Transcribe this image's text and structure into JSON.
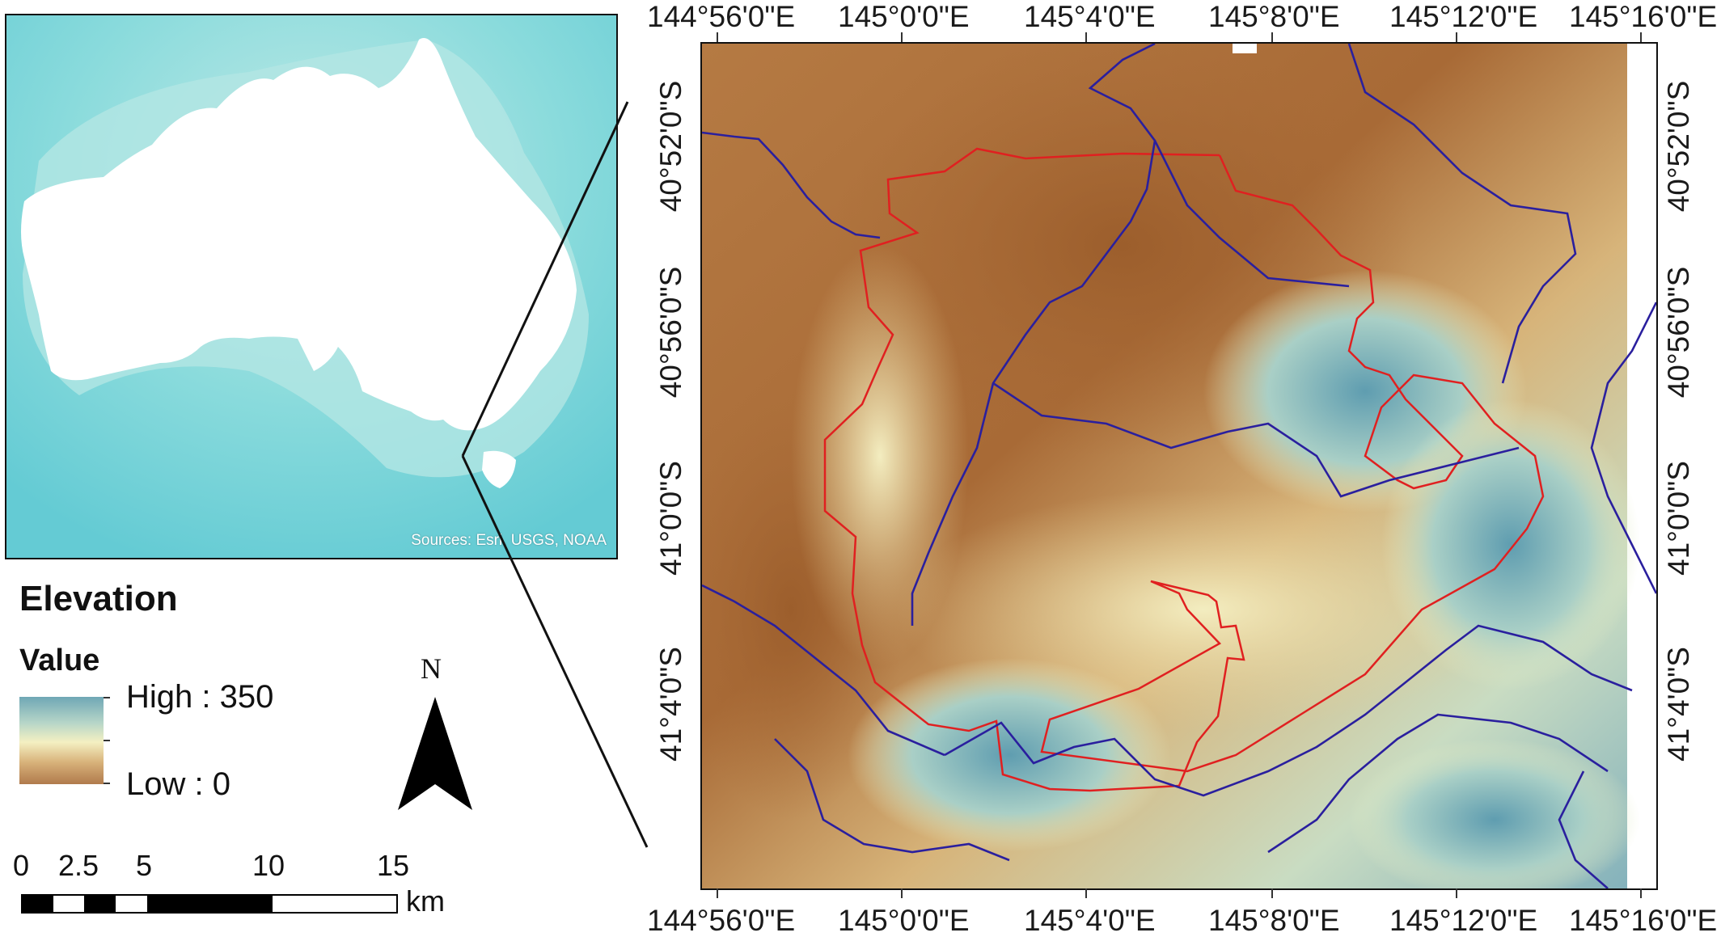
{
  "inset": {
    "credit": "Sources: Esri, USGS, NOAA",
    "colors": {
      "ocean": "#7fd6d9",
      "land": "#ffffff"
    }
  },
  "legend": {
    "title": "Elevation",
    "subtitle": "Value",
    "high_label": "High : 350",
    "low_label": "Low : 0",
    "ramp_colors": [
      "#6fa7b5",
      "#b7d6c8",
      "#f4f0c2",
      "#d8b27a",
      "#b07a4c"
    ]
  },
  "north_arrow": {
    "label": "N"
  },
  "scale_bar": {
    "ticks": [
      "0",
      "2.5",
      "5",
      "10",
      "15"
    ],
    "unit": "km"
  },
  "map": {
    "top_labels": [
      "144°56'0\"E",
      "145°0'0\"E",
      "145°4'0\"E",
      "145°8'0\"E",
      "145°12'0\"E",
      "145°16'0\"E"
    ],
    "bottom_labels": [
      "144°56'0\"E",
      "145°0'0\"E",
      "145°4'0\"E",
      "145°8'0\"E",
      "145°12'0\"E",
      "145°16'0\"E"
    ],
    "left_labels": [
      "40°52'0\"S",
      "40°56'0\"S",
      "41°0'0\"S",
      "41°4'0\"S"
    ],
    "right_labels": [
      "40°52'0\"S",
      "40°56'0\"S",
      "41°0'0\"S",
      "41°4'0\"S"
    ],
    "colors": {
      "river": "#2a1f9e",
      "boundary": "#e02020",
      "high": "#6fa7b5",
      "low": "#a56a35"
    }
  }
}
